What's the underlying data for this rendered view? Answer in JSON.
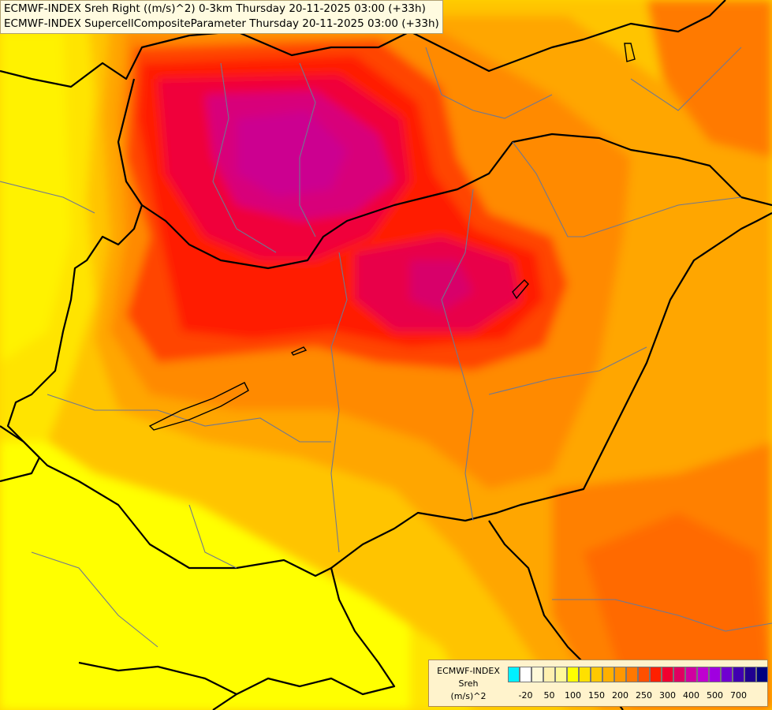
{
  "header": {
    "line1": "ECMWF-INDEX Sreh Right ((m/s)^2) 0-3km Thursday 20-11-2025 03:00 (+33h)",
    "line2": "ECMWF-INDEX SupercellCompositeParameter Thursday 20-11-2025 03:00 (+33h)"
  },
  "legend": {
    "title_lines": [
      "ECMWF-INDEX",
      "Sreh",
      "(m/s)^2"
    ],
    "colors": [
      "#00f0ff",
      "#ffffff",
      "#fff8d8",
      "#fff0b0",
      "#fff89a",
      "#ffff00",
      "#ffe000",
      "#ffc800",
      "#ffb000",
      "#ff9800",
      "#ff7800",
      "#ff5000",
      "#ff2000",
      "#f00030",
      "#e00060",
      "#d000a0",
      "#c000d0",
      "#a000e0",
      "#7000d0",
      "#4000b0",
      "#200090",
      "#000080"
    ],
    "ticks": [
      "-20",
      "50",
      "100",
      "150",
      "200",
      "250",
      "300",
      "400",
      "500",
      "700"
    ]
  }
}
